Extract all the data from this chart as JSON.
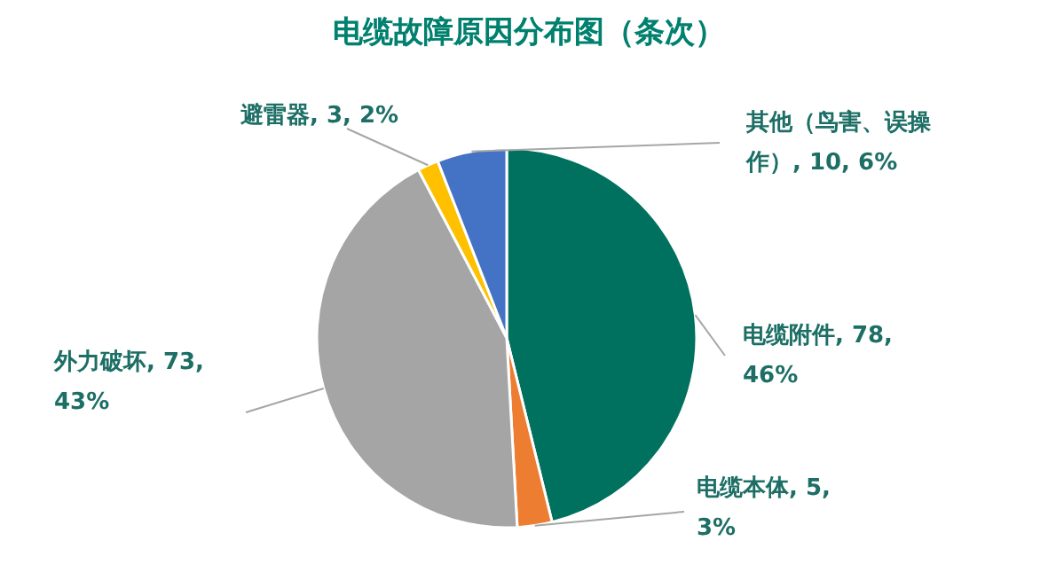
{
  "chart_data": {
    "type": "pie",
    "title": "电缆故障原因分布图（条次）",
    "categories": [
      "电缆附件",
      "电缆本体",
      "外力破坏",
      "避雷器",
      "其他（鸟害、误操作）"
    ],
    "values": [
      78,
      5,
      73,
      3,
      10
    ],
    "value_labels": [
      "78, 46%",
      "5, 3%",
      "73, 43%",
      "3, 2%",
      "10, 6%"
    ],
    "colors": [
      "#00715f",
      "#ed7d31",
      "#a5a5a5",
      "#ffc000",
      "#4472c4"
    ]
  }
}
